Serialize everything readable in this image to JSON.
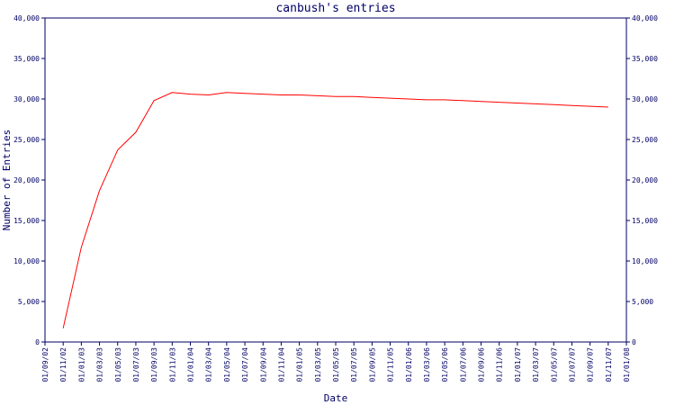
{
  "chart_data": {
    "type": "line",
    "title": "canbush's entries",
    "x_label": "Date",
    "y_label": "Number of Entries",
    "categories": [
      "01/09/02",
      "01/11/02",
      "01/01/03",
      "01/03/03",
      "01/05/03",
      "01/07/03",
      "01/09/03",
      "01/11/03",
      "01/01/04",
      "01/03/04",
      "01/05/04",
      "01/07/04",
      "01/09/04",
      "01/11/04",
      "01/01/05",
      "01/03/05",
      "01/05/05",
      "01/07/05",
      "01/09/05",
      "01/11/05",
      "01/01/06",
      "01/03/06",
      "01/05/06",
      "01/07/06",
      "01/09/06",
      "01/11/06",
      "01/01/07",
      "01/03/07",
      "01/05/07",
      "01/07/07",
      "01/09/07",
      "01/11/07",
      "01/01/08"
    ],
    "series": [
      {
        "name": "entries",
        "color": "#ff0000",
        "values": [
          null,
          1700,
          11700,
          18700,
          23700,
          25900,
          29800,
          30800,
          30600,
          30500,
          30800,
          30700,
          30600,
          30500,
          30500,
          30400,
          30300,
          30300,
          30200,
          30100,
          30000,
          29900,
          29900,
          29800,
          29700,
          29600,
          29500,
          29400,
          29300,
          29200,
          29100,
          29000,
          null
        ]
      }
    ],
    "ylim": [
      0,
      40000
    ],
    "yticks": [
      0,
      {
        "value": 5000,
        "label": "5,000"
      },
      {
        "value": 10000,
        "label": "10,000"
      },
      {
        "value": 15000,
        "label": "15,000"
      },
      {
        "value": 20000,
        "label": "20,000"
      },
      {
        "value": 25000,
        "label": "25,000"
      },
      {
        "value": 30000,
        "label": "30,000"
      },
      {
        "value": 35000,
        "label": "35,000"
      },
      {
        "value": 40000,
        "label": "40,000"
      }
    ],
    "axis_color": "#000066"
  }
}
